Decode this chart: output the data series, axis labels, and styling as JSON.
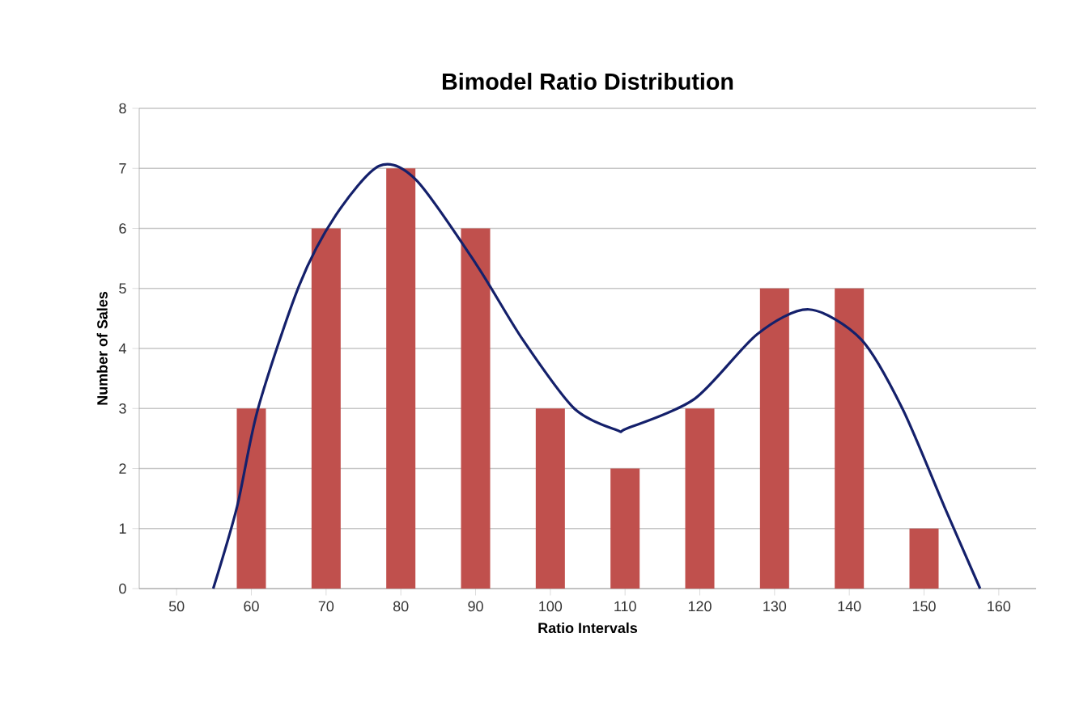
{
  "chart_data": {
    "type": "bar",
    "title": "Bimodel Ratio Distribution",
    "xlabel": "Ratio Intervals",
    "ylabel": "Number of Sales",
    "xlim": [
      45,
      165
    ],
    "xticks": [
      50,
      60,
      70,
      80,
      90,
      100,
      110,
      120,
      130,
      140,
      150,
      160
    ],
    "ylim": [
      0,
      8
    ],
    "yticks": [
      0,
      1,
      2,
      3,
      4,
      5,
      6,
      7,
      8
    ],
    "grid": "y",
    "series": [
      {
        "color": "#c0504d",
        "x": [
          60,
          70,
          80,
          90,
          100,
          110,
          120,
          130,
          140,
          150
        ],
        "values": [
          3,
          6,
          7,
          6,
          3,
          2,
          3,
          5,
          5,
          1
        ]
      },
      {
        "type": "line",
        "color": "#14206b",
        "x": [
          54.9,
          58.1,
          60.9,
          66.4,
          71.3,
          77.1,
          82.1,
          90.1,
          96.3,
          103.2,
          108.9,
          110.3,
          119.3,
          127.7,
          134.6,
          141.6,
          147.1,
          152.7,
          157.5
        ],
        "values": [
          0,
          1.37,
          3,
          5.05,
          6.22,
          7.04,
          6.8,
          5.4,
          4.15,
          3,
          2.64,
          2.67,
          3.16,
          4.24,
          4.65,
          4.15,
          3,
          1.37,
          0
        ]
      }
    ]
  }
}
